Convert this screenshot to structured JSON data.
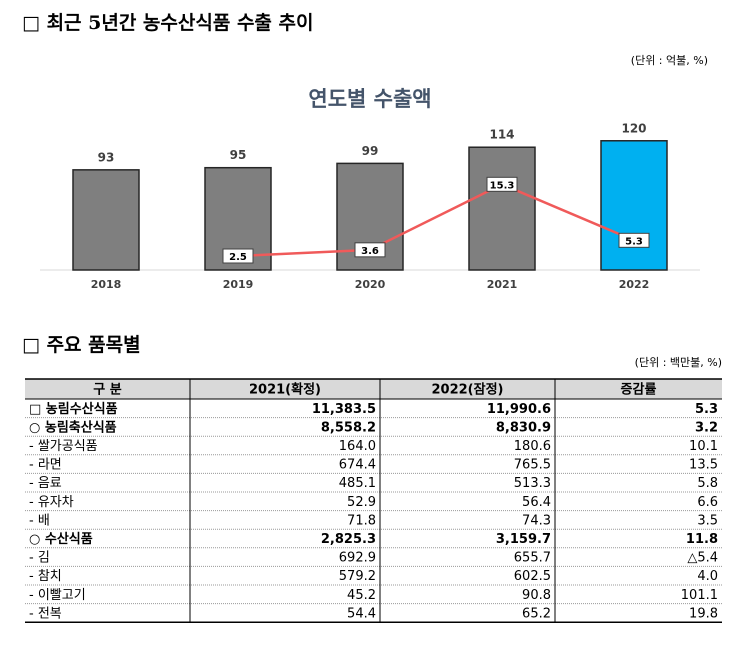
{
  "heading1": "□ 최근 5년간 농수산식품 수출 추이",
  "unit1": "(단위 : 억불, %)",
  "chart_data": {
    "type": "combo",
    "title": "연도별 수출액",
    "categories": [
      "2018",
      "2019",
      "2020",
      "2021",
      "2022"
    ],
    "ylim": [
      0,
      130
    ],
    "y2lim": [
      0,
      25
    ],
    "series": [
      {
        "type": "bar",
        "values": [
          93,
          95,
          99,
          114,
          120
        ],
        "colors": [
          "#7f7f7f",
          "#7f7f7f",
          "#7f7f7f",
          "#7f7f7f",
          "#00b0f0"
        ]
      },
      {
        "type": "line",
        "axis": "y2",
        "color": "#f05a5a",
        "values": [
          null,
          2.5,
          3.6,
          15.3,
          5.3
        ]
      }
    ]
  },
  "heading2": "□ 주요 품목별",
  "unit2": "(단위 : 백만불, %)",
  "table": {
    "header": [
      "구 분",
      "2021(확정)",
      "2022(잠정)",
      "증감률"
    ],
    "rows": [
      [
        "□ 농림수산식품",
        "11,383.5",
        "11,990.6",
        "5.3"
      ],
      [
        "○ 농림축산식품",
        "8,558.2",
        "8,830.9",
        "3.2"
      ],
      [
        "- 쌀가공식품",
        "164.0",
        "180.6",
        "10.1"
      ],
      [
        "- 라면",
        "674.4",
        "765.5",
        "13.5"
      ],
      [
        "- 음료",
        "485.1",
        "513.3",
        "5.8"
      ],
      [
        "- 유자차",
        "52.9",
        "56.4",
        "6.6"
      ],
      [
        "- 배",
        "71.8",
        "74.3",
        "3.5"
      ],
      [
        "○ 수산식품",
        "2,825.3",
        "3,159.7",
        "11.8"
      ],
      [
        "- 김",
        "692.9",
        "655.7",
        "△5.4"
      ],
      [
        "- 참치",
        "579.2",
        "602.5",
        "4.0"
      ],
      [
        "- 이빨고기",
        "45.2",
        "90.8",
        "101.1"
      ],
      [
        "- 전복",
        "54.4",
        "65.2",
        "19.8"
      ]
    ]
  }
}
